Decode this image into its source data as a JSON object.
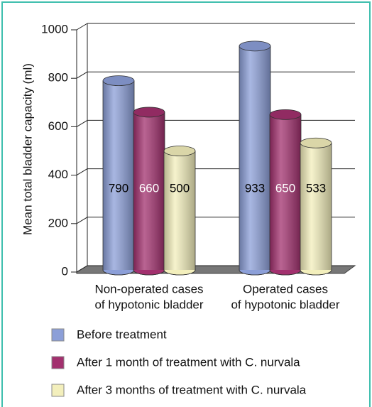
{
  "chart_data": {
    "type": "bar3d",
    "y_label": "Mean total bladder capacity  (ml)",
    "categories": [
      [
        "Non-operated cases",
        "of hypotonic bladder"
      ],
      [
        "Operated cases",
        "of hypotonic bladder"
      ]
    ],
    "series": [
      {
        "name": "Before treatment",
        "color": "#8c9fd8",
        "label_color": "#000000",
        "values": [
          790,
          933
        ]
      },
      {
        "name": "After 1 month of treatment with C. nurvala",
        "color": "#a2306e",
        "label_color": "#ffffff",
        "values": [
          660,
          650
        ]
      },
      {
        "name": "After 3 months of treatment with C. nurvala",
        "color": "#f3efbc",
        "label_color": "#000000",
        "values": [
          500,
          533
        ]
      }
    ],
    "ylim": [
      0,
      1000
    ],
    "yticks": [
      0,
      200,
      400,
      600,
      800,
      1000
    ],
    "grid": true
  }
}
